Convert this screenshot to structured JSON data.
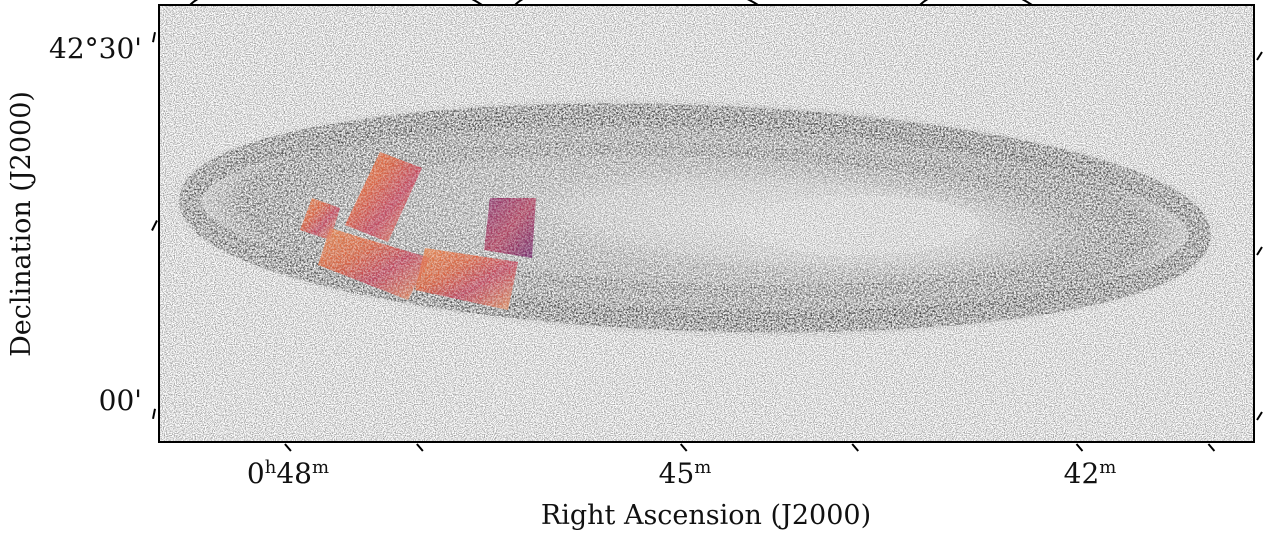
{
  "chart_data": {
    "type": "heatmap",
    "title": "",
    "xlabel": "Right Ascension (J2000)",
    "ylabel": "Declination (J2000)",
    "x_ticks": [
      {
        "h": "0",
        "hu": "h",
        "m": "48",
        "mu": "m",
        "ra_min": 48
      },
      {
        "h": "",
        "hu": "",
        "m": "45",
        "mu": "m",
        "ra_min": 45
      },
      {
        "h": "",
        "hu": "",
        "m": "42",
        "mu": "m",
        "ra_min": 42
      }
    ],
    "y_ticks": [
      {
        "label": "42°30'",
        "dec_arcmin": 30
      },
      {
        "label": "00'",
        "dec_arcmin": 0
      }
    ],
    "xlim": [
      49.0,
      40.7
    ],
    "ylim": [
      -2.4,
      32.4
    ],
    "grid": false,
    "layers": [
      {
        "name": "galaxy",
        "colormap": "gray_r"
      },
      {
        "name": "overlay",
        "colormap": "inferno"
      }
    ]
  }
}
